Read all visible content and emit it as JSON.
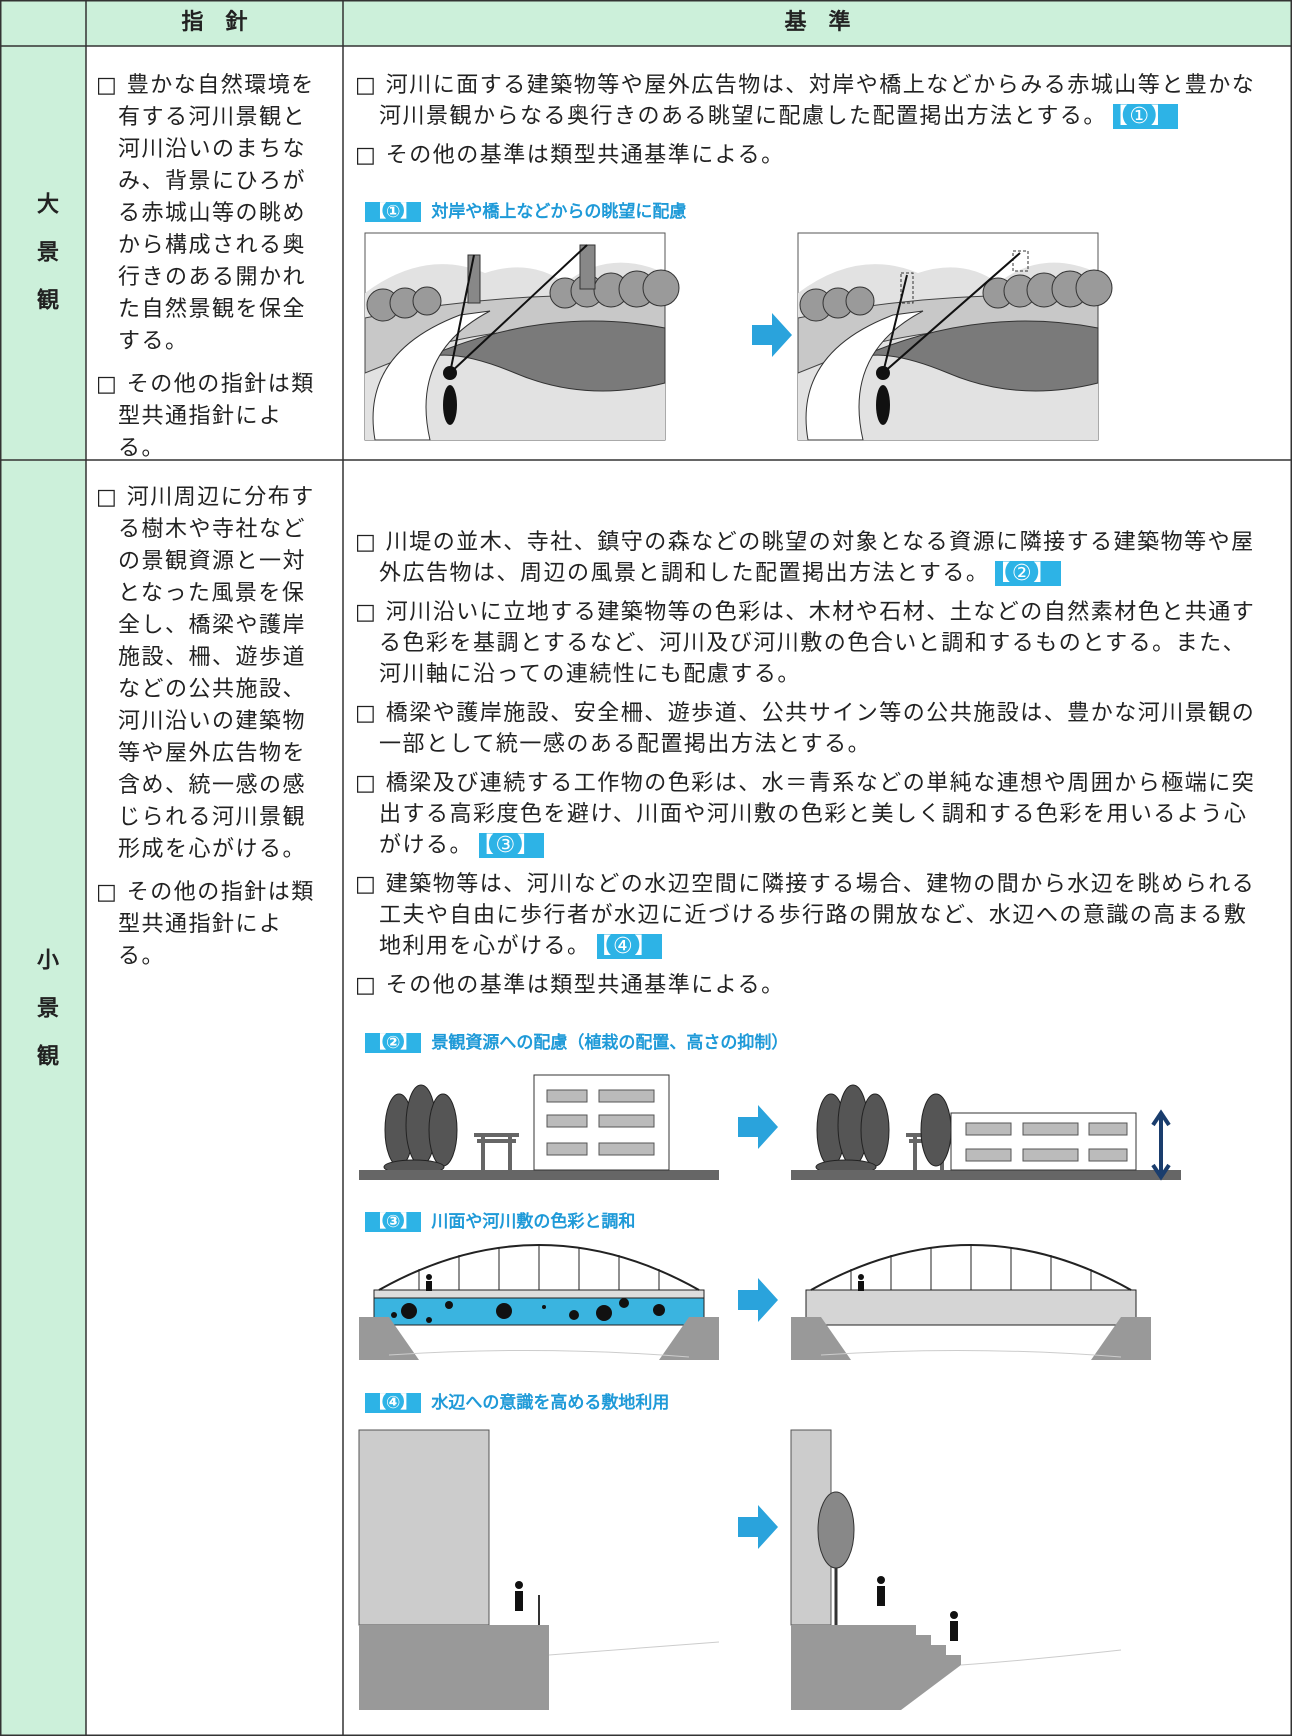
{
  "header": {
    "guideline": "指　針",
    "standard": "基　準"
  },
  "rows": [
    {
      "category": "大景観",
      "guidelines": [
        "□ 豊かな自然環境を有する河川景観と河川沿いのまちなみ、背景にひろがる赤城山等の眺めから構成される奥行きのある開かれた自然景観を保全する。",
        "□ その他の指針は類型共通指針による。"
      ],
      "standards": [
        {
          "text": "□ 河川に面する建築物等や屋外広告物は、対岸や橋上などからみる赤城山等と豊かな河川景観からなる奥行きのある眺望に配慮した配置掲出方法とする。",
          "tag": "【①】"
        },
        {
          "text": "□ その他の基準は類型共通基準による。"
        }
      ],
      "figures": [
        {
          "tag": "【①】",
          "caption": "対岸や橋上などからの眺望に配慮"
        }
      ]
    },
    {
      "category": "小景観",
      "guidelines": [
        "□ 河川周辺に分布する樹木や寺社などの景観資源と一対となった風景を保全し、橋梁や護岸施設、柵、遊歩道などの公共施設、河川沿いの建築物等や屋外広告物を含め、統一感の感じられる河川景観形成を心がける。",
        "□ その他の指針は類型共通指針による。"
      ],
      "standards": [
        {
          "text": "□ 川堤の並木、寺社、鎮守の森などの眺望の対象となる資源に隣接する建築物等や屋外広告物は、周辺の風景と調和した配置掲出方法とする。",
          "tag": "【②】"
        },
        {
          "text": "□ 河川沿いに立地する建築物等の色彩は、木材や石材、土などの自然素材色と共通する色彩を基調とするなど、河川及び河川敷の色合いと調和するものとする。また、河川軸に沿っての連続性にも配慮する。"
        },
        {
          "text": "□ 橋梁や護岸施設、安全柵、遊歩道、公共サイン等の公共施設は、豊かな河川景観の一部として統一感のある配置掲出方法とする。"
        },
        {
          "text": "□ 橋梁及び連続する工作物の色彩は、水＝青系などの単純な連想や周囲から極端に突出する高彩度色を避け、川面や河川敷の色彩と美しく調和する色彩を用いるよう心がける。",
          "tag": "【③】"
        },
        {
          "text": "□ 建築物等は、河川などの水辺空間に隣接する場合、建物の間から水辺を眺められる工夫や自由に歩行者が水辺に近づける歩行路の開放など、水辺への意識の高まる敷地利用を心がける。",
          "tag": "【④】"
        },
        {
          "text": "□ その他の基準は類型共通基準による。"
        }
      ],
      "figures": [
        {
          "tag": "【②】",
          "caption": "景観資源への配慮（植栽の配置、高さの抑制）"
        },
        {
          "tag": "【③】",
          "caption": "川面や河川敷の色彩と調和"
        },
        {
          "tag": "【④】",
          "caption": "水辺への意識を高める敷地利用"
        }
      ]
    }
  ]
}
